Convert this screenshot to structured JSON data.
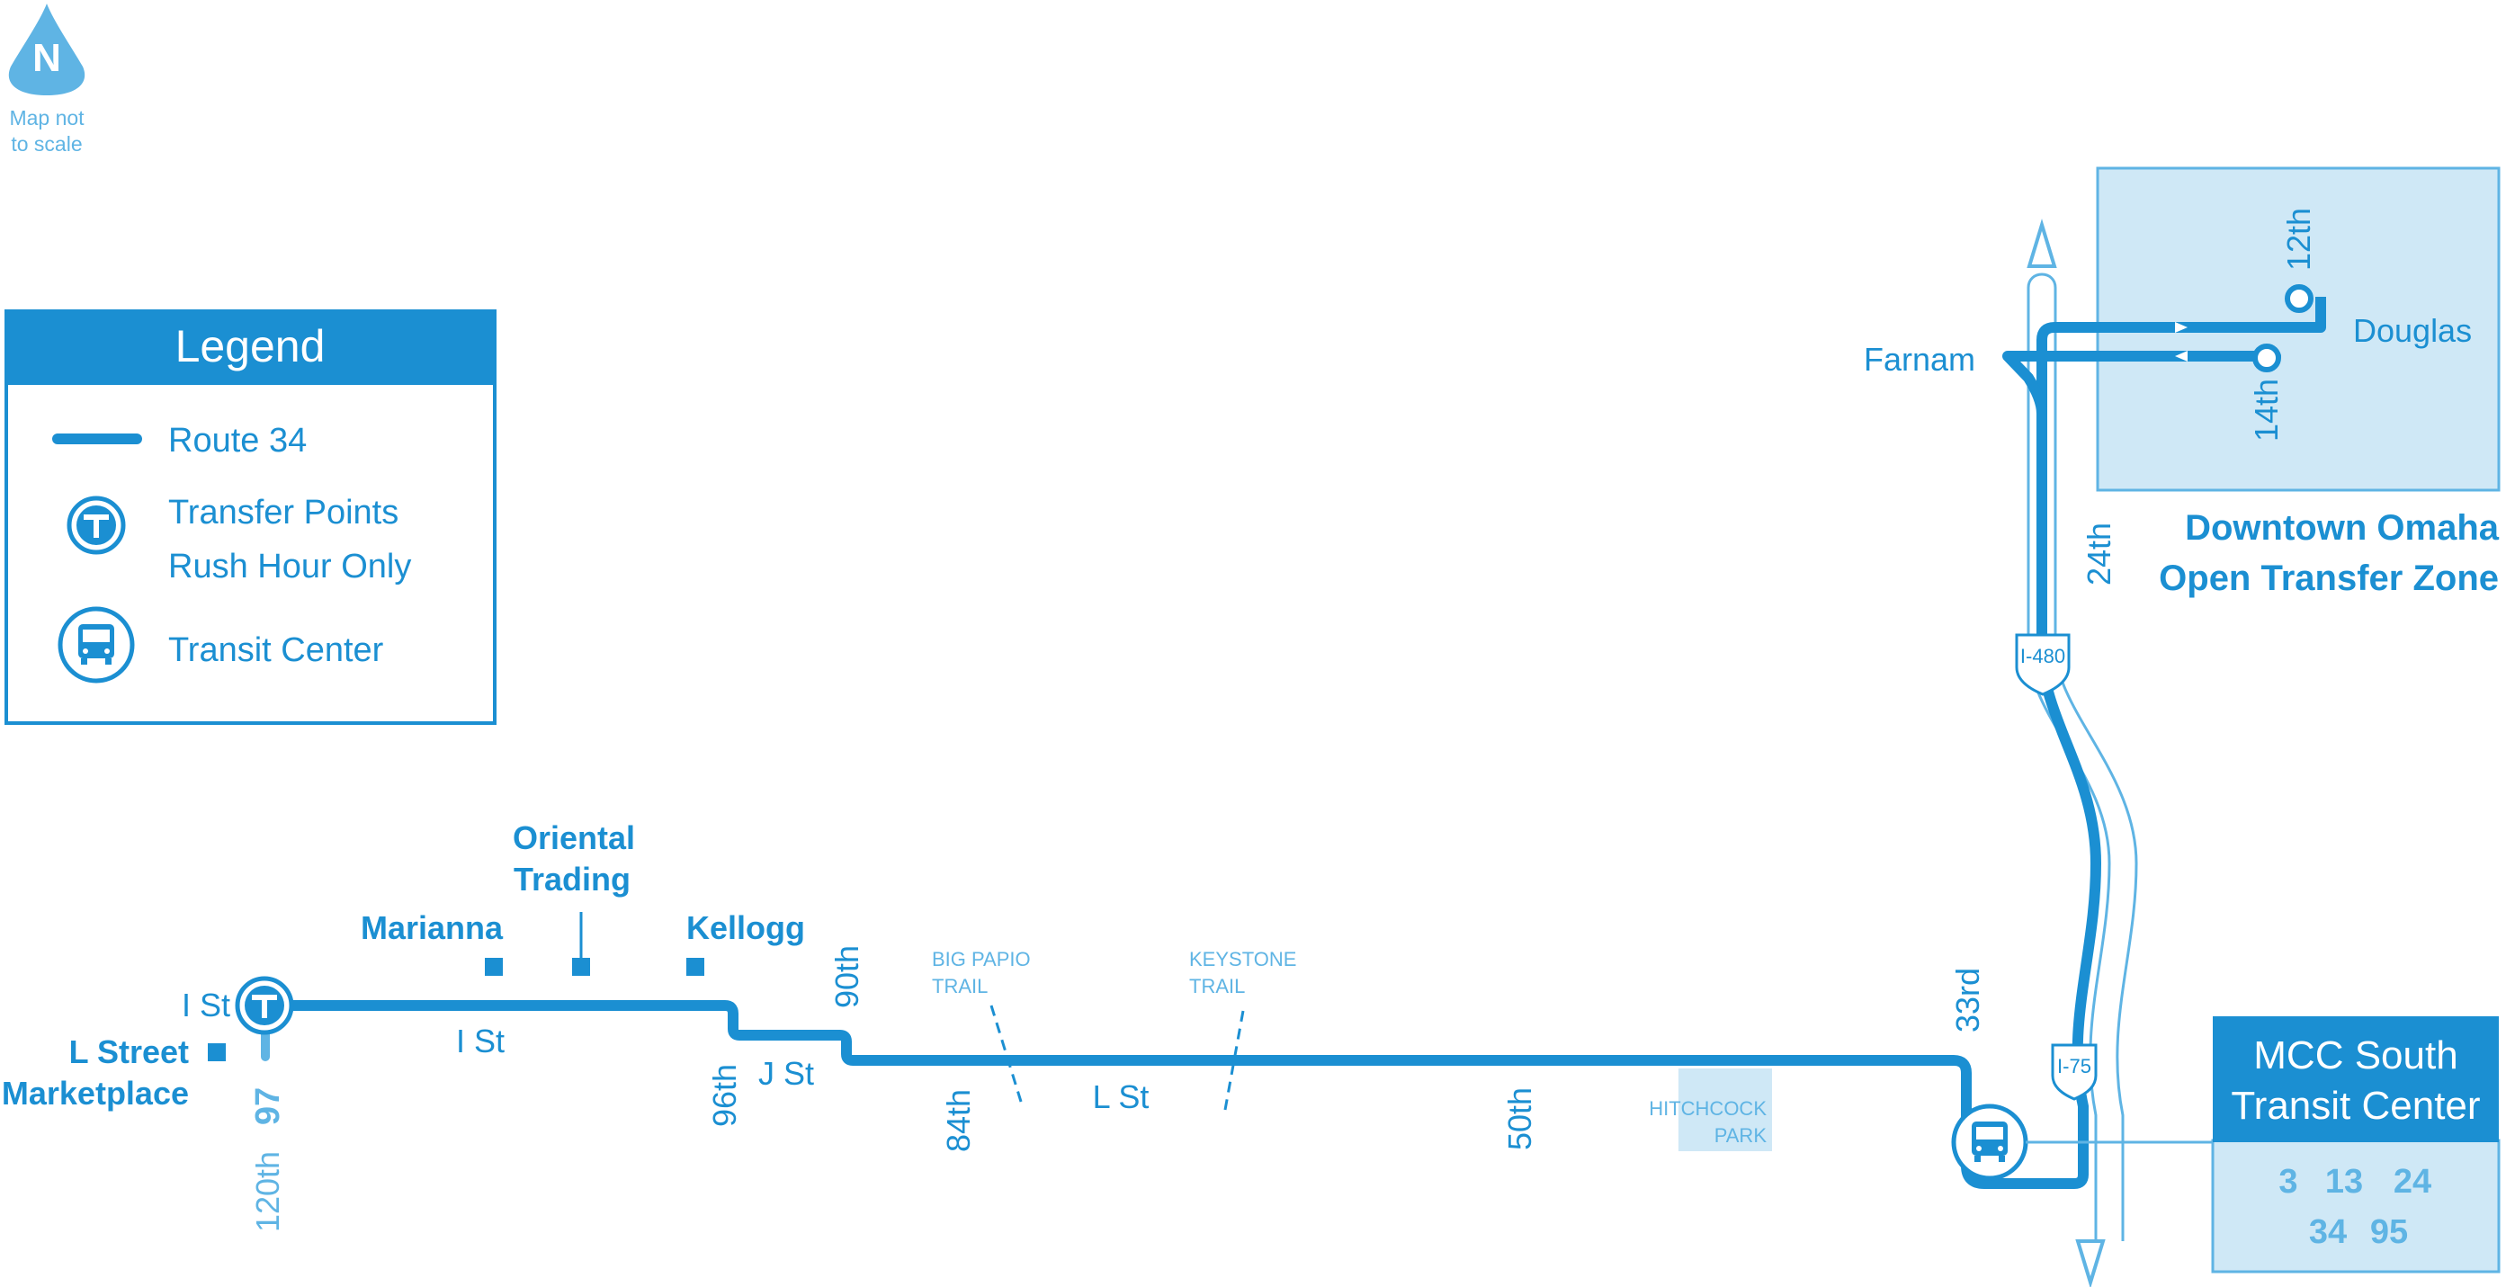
{
  "colors": {
    "route": "#1b8fd2",
    "light": "#5fb4e4",
    "zone_fill": "#cfe8f6",
    "zone_border": "#5fb4e4",
    "box_fill": "#cfe8f6",
    "white": "#ffffff"
  },
  "north": {
    "letter": "N",
    "note_line1": "Map not",
    "note_line2": "to scale"
  },
  "legend": {
    "title": "Legend",
    "items": [
      {
        "icon": "route-line-icon",
        "label": "Route 34"
      },
      {
        "icon": "transfer-point-icon",
        "label": "Transfer Points",
        "label2": "Rush Hour Only"
      },
      {
        "icon": "bus-icon",
        "label": "Transit Center"
      }
    ]
  },
  "stops": {
    "marianna": "Marianna",
    "oriental_1": "Oriental",
    "oriental_2": "Trading",
    "kellogg": "Kellogg",
    "l_street_1": "L Street",
    "l_street_2": "Marketplace"
  },
  "streets": {
    "i_st_terminal": "I St",
    "i_st": "I St",
    "j_st": "J St",
    "l_st": "L St",
    "s120th": "120th",
    "s96th": "96th",
    "s90th": "90th",
    "s84th": "84th",
    "s50th": "50th",
    "s33rd": "33rd",
    "s24th": "24th",
    "s14th": "14th",
    "s12th": "12th",
    "farnam": "Farnam",
    "douglas": "Douglas"
  },
  "route_97": "97",
  "trails": {
    "big_papio_1": "BIG PAPIO",
    "big_papio_2": "TRAIL",
    "keystone_1": "KEYSTONE",
    "keystone_2": "TRAIL"
  },
  "park": {
    "line1": "HITCHCOCK",
    "line2": "PARK"
  },
  "highways": {
    "i480": "I-480",
    "i75": "I-75"
  },
  "downtown": {
    "line1": "Downtown Omaha",
    "line2": "Open Transfer Zone"
  },
  "transit_center": {
    "title1": "MCC South",
    "title2": "Transit Center",
    "routes_row1": [
      "3",
      "13",
      "24"
    ],
    "routes_row2": [
      "34",
      "95"
    ]
  }
}
